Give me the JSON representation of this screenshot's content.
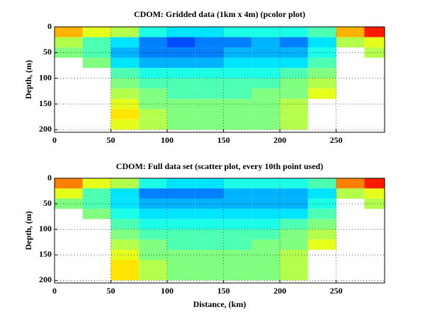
{
  "chart_data": [
    {
      "type": "heatmap",
      "title": "CDOM: Gridded data (1km x 4m) (pcolor plot)",
      "ylabel": "Depth, (m)",
      "colormap": "jet",
      "y_inverted": true,
      "grid": true,
      "xbins": [
        0,
        25,
        50,
        75,
        100,
        125,
        150,
        175,
        200,
        225,
        250,
        275,
        293
      ],
      "ybins": [
        0,
        20,
        40,
        60,
        80,
        100,
        120,
        140,
        160,
        180,
        200
      ],
      "z": [
        [
          0.7,
          0.55,
          0.5,
          null,
          null,
          null,
          null,
          null,
          null,
          null
        ],
        [
          0.6,
          0.45,
          0.45,
          0.5,
          null,
          null,
          null,
          null,
          null,
          null
        ],
        [
          0.55,
          0.35,
          0.3,
          0.35,
          0.45,
          0.5,
          0.55,
          0.6,
          0.65,
          0.6
        ],
        [
          0.4,
          0.25,
          0.25,
          0.3,
          0.4,
          0.45,
          0.5,
          0.5,
          0.55,
          0.55
        ],
        [
          0.35,
          0.2,
          0.25,
          0.3,
          0.4,
          0.45,
          0.45,
          0.5,
          0.5,
          0.5
        ],
        [
          0.35,
          0.25,
          0.25,
          0.3,
          0.4,
          0.45,
          0.45,
          0.5,
          0.5,
          0.5
        ],
        [
          0.4,
          0.25,
          0.3,
          0.35,
          0.4,
          0.45,
          0.45,
          0.5,
          0.5,
          0.5
        ],
        [
          0.4,
          0.3,
          0.3,
          0.35,
          0.4,
          0.45,
          0.5,
          0.5,
          0.5,
          0.5
        ],
        [
          0.4,
          0.25,
          0.3,
          0.35,
          0.45,
          0.5,
          0.5,
          0.55,
          0.55,
          0.55
        ],
        [
          0.45,
          0.35,
          0.4,
          0.45,
          0.5,
          0.55,
          0.6,
          null,
          null,
          null
        ],
        [
          0.7,
          0.55,
          null,
          null,
          null,
          null,
          null,
          null,
          null,
          null
        ],
        [
          0.85,
          0.6,
          0.55,
          null,
          null,
          null,
          null,
          null,
          null,
          null
        ]
      ],
      "xlim": [
        0,
        293
      ],
      "ylim": [
        0,
        205
      ],
      "xticks": [
        0,
        50,
        100,
        150,
        200,
        250
      ],
      "yticks": [
        0,
        50,
        100,
        150,
        200
      ]
    },
    {
      "type": "heatmap",
      "title": "CDOM: Full data set (scatter plot, every 10th point used)",
      "ylabel": "Depth, (m)",
      "xlabel": "Distance, (km)",
      "colormap": "jet",
      "y_inverted": true,
      "grid": true,
      "xbins": [
        0,
        25,
        50,
        75,
        100,
        125,
        150,
        175,
        200,
        225,
        250,
        275,
        293
      ],
      "ybins": [
        0,
        20,
        40,
        60,
        80,
        100,
        120,
        140,
        160,
        180,
        200
      ],
      "z": [
        [
          0.75,
          0.6,
          0.5,
          null,
          null,
          null,
          null,
          null,
          null,
          null
        ],
        [
          0.6,
          0.45,
          0.45,
          0.5,
          null,
          null,
          null,
          null,
          null,
          null
        ],
        [
          0.55,
          0.35,
          0.35,
          0.4,
          0.45,
          0.5,
          0.55,
          0.6,
          0.65,
          0.65
        ],
        [
          0.4,
          0.25,
          0.3,
          0.35,
          0.4,
          0.45,
          0.5,
          0.5,
          0.55,
          0.55
        ],
        [
          0.35,
          0.25,
          0.3,
          0.35,
          0.4,
          0.45,
          0.45,
          0.5,
          0.5,
          0.5
        ],
        [
          0.35,
          0.25,
          0.3,
          0.35,
          0.4,
          0.45,
          0.45,
          0.5,
          0.5,
          0.5
        ],
        [
          0.4,
          0.3,
          0.3,
          0.35,
          0.4,
          0.45,
          0.45,
          0.5,
          0.5,
          0.5
        ],
        [
          0.4,
          0.3,
          0.3,
          0.35,
          0.4,
          0.45,
          0.5,
          0.5,
          0.5,
          0.5
        ],
        [
          0.4,
          0.3,
          0.3,
          0.35,
          0.45,
          0.5,
          0.5,
          0.55,
          0.55,
          0.55
        ],
        [
          0.45,
          0.35,
          0.4,
          0.45,
          0.5,
          0.55,
          0.6,
          null,
          null,
          null
        ],
        [
          0.75,
          0.55,
          null,
          null,
          null,
          null,
          null,
          null,
          null,
          null
        ],
        [
          0.85,
          0.6,
          0.55,
          null,
          null,
          null,
          null,
          null,
          null,
          null
        ]
      ],
      "xlim": [
        0,
        293
      ],
      "ylim": [
        0,
        205
      ],
      "xticks": [
        0,
        50,
        100,
        150,
        200,
        250
      ],
      "yticks": [
        0,
        50,
        100,
        150,
        200
      ]
    }
  ]
}
